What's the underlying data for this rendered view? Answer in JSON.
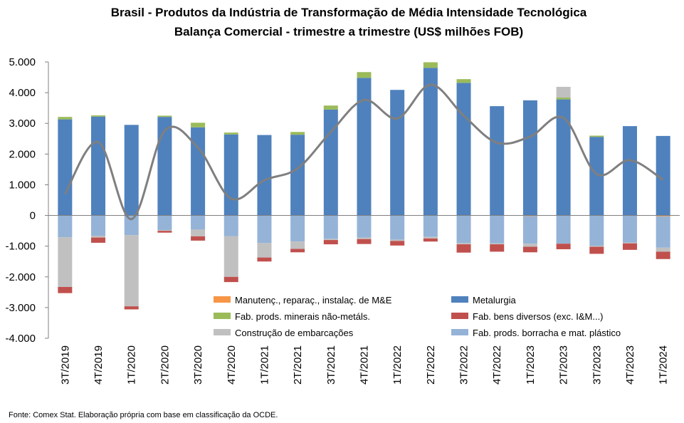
{
  "chart_data": {
    "type": "bar",
    "stacked": true,
    "title": [
      "Brasil - Produtos da Indústria de Transformação de Média Intensidade Tecnológica",
      "Balança Comercial - trimestre a trimestre (US$ milhões FOB)"
    ],
    "categories": [
      "3T/2019",
      "4T/2019",
      "1T/2020",
      "2T/2020",
      "3T/2020",
      "4T/2020",
      "1T/2021",
      "2T/2021",
      "3T/2021",
      "4T/2021",
      "1T/2022",
      "2T/2022",
      "3T/2022",
      "4T/2022",
      "1T/2023",
      "2T/2023",
      "3T/2023",
      "4T/2023",
      "1T/2024"
    ],
    "ylim": [
      -4000,
      5000
    ],
    "yticks": [
      -4000,
      -3000,
      -2000,
      -1000,
      0,
      1000,
      2000,
      3000,
      4000,
      5000
    ],
    "ytick_labels": [
      "-4.000",
      "-3.000",
      "-2.000",
      "-1.000",
      "0",
      "1.000",
      "2.000",
      "3.000",
      "4.000",
      "5.000"
    ],
    "grid": false,
    "legend_position": "bottom-inside",
    "series": [
      {
        "name": "Manutenç., reparaç., instalaç. de M&E",
        "color": "#f79646",
        "values": [
          0,
          0,
          0,
          0,
          0,
          0,
          0,
          0,
          0,
          0,
          0,
          0,
          0,
          0,
          -20,
          0,
          0,
          0,
          -30
        ]
      },
      {
        "name": "Metalurgia",
        "color": "#4f81bd",
        "values": [
          3130,
          3220,
          2950,
          3210,
          2870,
          2640,
          2620,
          2630,
          3450,
          4480,
          4090,
          4810,
          4320,
          3560,
          3750,
          3780,
          2560,
          2910,
          2590
        ]
      },
      {
        "name": "Fab. prods. minerais não-metáls.",
        "color": "#9bbb59",
        "values": [
          80,
          40,
          0,
          40,
          150,
          60,
          0,
          90,
          130,
          190,
          0,
          180,
          120,
          0,
          0,
          60,
          40,
          0,
          0
        ]
      },
      {
        "name": "Fab. bens diversos (exc. I&M...)",
        "color": "#c0504d",
        "values": [
          -200,
          -170,
          -100,
          -60,
          -140,
          -170,
          -130,
          -110,
          -140,
          -160,
          -150,
          -100,
          -270,
          -240,
          -180,
          -180,
          -230,
          -210,
          -240
        ]
      },
      {
        "name": "Construção de embarcações",
        "color": "#c0c0c0",
        "values": [
          -1620,
          -60,
          -2320,
          -20,
          -220,
          -1320,
          -470,
          -240,
          -40,
          -50,
          -40,
          -50,
          -40,
          -30,
          -100,
          350,
          -30,
          -30,
          -130
        ]
      },
      {
        "name": "Fab. prods. borracha e mat. plástico",
        "color": "#95b3d7",
        "values": [
          -710,
          -660,
          -640,
          -480,
          -460,
          -680,
          -900,
          -850,
          -760,
          -720,
          -790,
          -700,
          -900,
          -910,
          -900,
          -920,
          -990,
          -880,
          -1020
        ]
      }
    ],
    "line": {
      "color": "#7f7f7f",
      "values": [
        700,
        2390,
        -120,
        2760,
        2210,
        550,
        1150,
        1530,
        2720,
        3760,
        3160,
        4260,
        3250,
        2370,
        2570,
        3180,
        1350,
        1800,
        1160
      ]
    },
    "source": "Fonte: Comex Stat. Elaboração própria com base em classificação da OCDE."
  }
}
